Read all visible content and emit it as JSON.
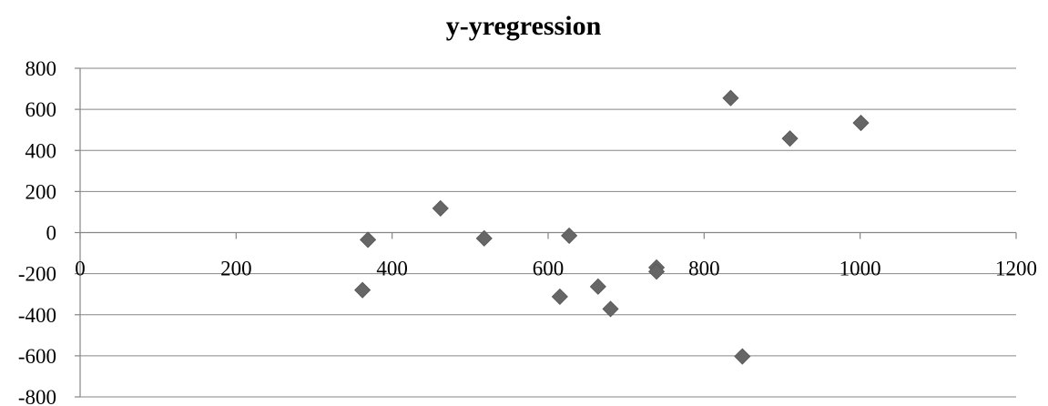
{
  "chart_data": {
    "type": "scatter",
    "title": "y-yregression",
    "xlabel": "",
    "ylabel": "",
    "xlim": [
      0,
      1200
    ],
    "ylim": [
      -800,
      800
    ],
    "x_ticks": [
      0,
      200,
      400,
      600,
      800,
      1000,
      1200
    ],
    "y_ticks": [
      800,
      600,
      400,
      200,
      0,
      -200,
      -400,
      -600,
      -800
    ],
    "x_tick_labels": [
      "0",
      "200",
      "400",
      "600",
      "800",
      "1000",
      "1200"
    ],
    "y_tick_labels": [
      "800",
      "600",
      "400",
      "200",
      "0",
      "-200",
      "-400",
      "-600",
      "-800"
    ],
    "grid": "horizontal",
    "legend": "none",
    "marker": "diamond",
    "marker_color": "#666666",
    "points": [
      {
        "x": 362,
        "y": -280
      },
      {
        "x": 369,
        "y": -35
      },
      {
        "x": 462,
        "y": 118
      },
      {
        "x": 518,
        "y": -28
      },
      {
        "x": 615,
        "y": -312
      },
      {
        "x": 627,
        "y": -15
      },
      {
        "x": 664,
        "y": -263
      },
      {
        "x": 680,
        "y": -372
      },
      {
        "x": 739,
        "y": -170
      },
      {
        "x": 739,
        "y": -190
      },
      {
        "x": 834,
        "y": 655
      },
      {
        "x": 849,
        "y": -603
      },
      {
        "x": 910,
        "y": 458
      },
      {
        "x": 1001,
        "y": 534
      }
    ]
  }
}
